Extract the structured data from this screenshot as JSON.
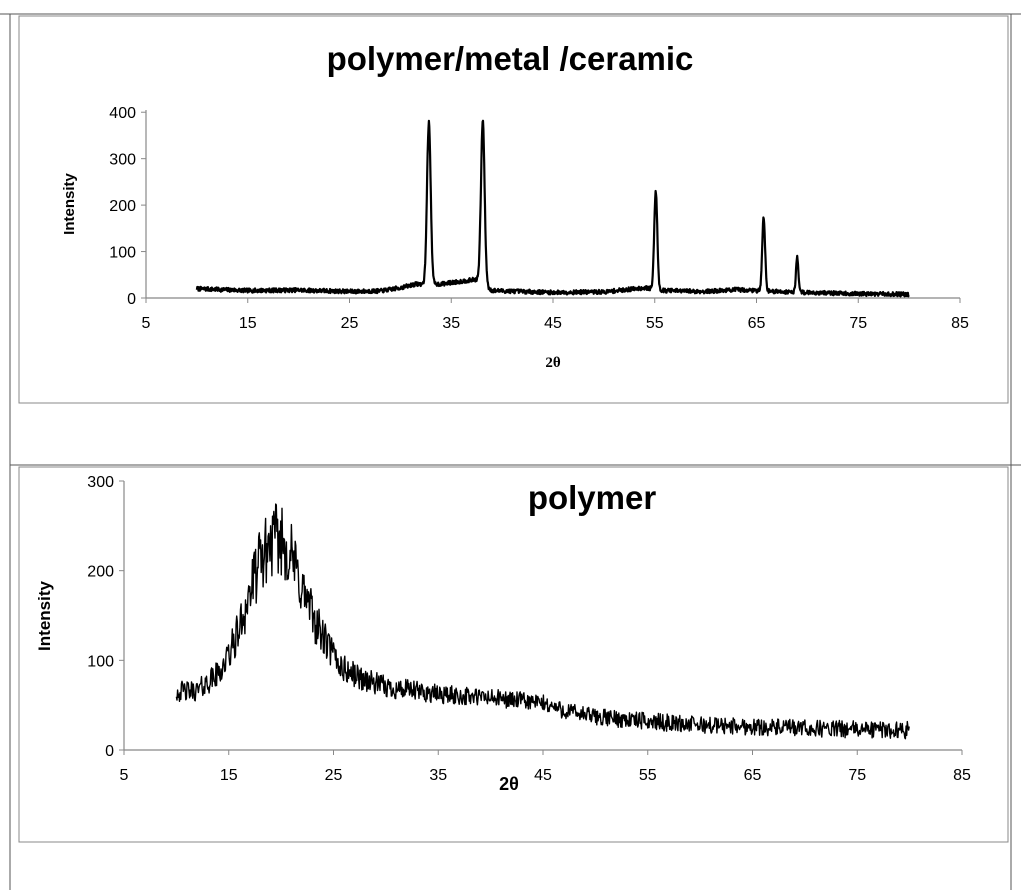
{
  "chart_data": [
    {
      "type": "line",
      "title": "polymer/metal /ceramic",
      "xlabel": "2θ",
      "ylabel": "Intensity",
      "xlim": [
        5,
        85
      ],
      "ylim": [
        0,
        450
      ],
      "xticks": [
        5,
        15,
        25,
        35,
        45,
        55,
        65,
        75,
        85
      ],
      "yticks": [
        0,
        100,
        200,
        300,
        400
      ],
      "grid": false,
      "legend": "none",
      "series_color": "#000000",
      "baseline_points": [
        [
          10,
          20
        ],
        [
          15,
          16
        ],
        [
          20,
          17
        ],
        [
          25,
          14
        ],
        [
          28,
          15
        ],
        [
          30,
          22
        ],
        [
          31.5,
          30
        ],
        [
          34,
          30
        ],
        [
          36,
          36
        ],
        [
          37.5,
          40
        ],
        [
          39,
          16
        ],
        [
          45,
          12
        ],
        [
          50,
          13
        ],
        [
          54,
          22
        ],
        [
          56,
          16
        ],
        [
          60,
          14
        ],
        [
          63,
          18
        ],
        [
          67,
          14
        ],
        [
          70,
          12
        ],
        [
          75,
          9
        ],
        [
          80,
          8
        ]
      ],
      "peaks": [
        {
          "x": 32.8,
          "y": 378
        },
        {
          "x": 38.1,
          "y": 382
        },
        {
          "x": 55.1,
          "y": 230
        },
        {
          "x": 65.7,
          "y": 175
        },
        {
          "x": 69.0,
          "y": 88
        }
      ]
    },
    {
      "type": "line",
      "title": "polymer",
      "xlabel": "2θ",
      "ylabel": "Intensity",
      "xlim": [
        5,
        85
      ],
      "ylim": [
        0,
        300
      ],
      "xticks": [
        5,
        15,
        25,
        35,
        45,
        55,
        65,
        75,
        85
      ],
      "yticks": [
        0,
        100,
        200,
        300
      ],
      "grid": false,
      "legend": "none",
      "series_color": "#000000",
      "points": [
        [
          10,
          65
        ],
        [
          12,
          66
        ],
        [
          14,
          85
        ],
        [
          15,
          105
        ],
        [
          16,
          135
        ],
        [
          17,
          175
        ],
        [
          18,
          210
        ],
        [
          19,
          232
        ],
        [
          20,
          235
        ],
        [
          21,
          215
        ],
        [
          22,
          180
        ],
        [
          23,
          150
        ],
        [
          24,
          125
        ],
        [
          25,
          105
        ],
        [
          26,
          90
        ],
        [
          28,
          78
        ],
        [
          30,
          70
        ],
        [
          35,
          62
        ],
        [
          40,
          58
        ],
        [
          43,
          55
        ],
        [
          45,
          52
        ],
        [
          47,
          44
        ],
        [
          50,
          37
        ],
        [
          55,
          32
        ],
        [
          60,
          28
        ],
        [
          65,
          26
        ],
        [
          70,
          24
        ],
        [
          75,
          23
        ],
        [
          80,
          22
        ]
      ]
    }
  ]
}
